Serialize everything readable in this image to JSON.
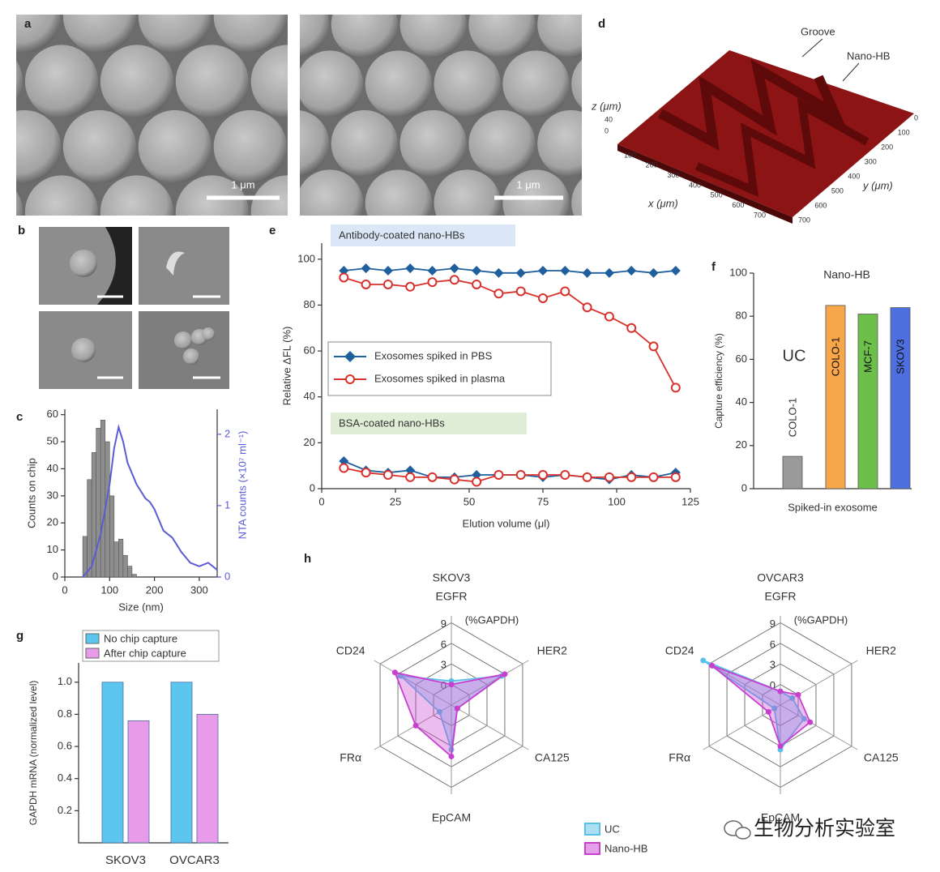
{
  "images": {
    "a": {
      "label": "a",
      "scale_bars": [
        "1 μm",
        "1 μm"
      ]
    },
    "b": {
      "label": "b"
    },
    "d": {
      "label": "d",
      "annotations": [
        "Groove",
        "Nano-HB"
      ],
      "x_label": "x (μm)",
      "y_label": "y (μm)",
      "z_label": "z (μm)",
      "x_ticks": [
        100,
        200,
        300,
        400,
        500,
        600,
        700
      ],
      "y_ticks": [
        0,
        100,
        200,
        300,
        400,
        500,
        600,
        700
      ],
      "z_ticks": [
        40,
        0
      ]
    }
  },
  "chart_data": [
    {
      "type": "histogram",
      "label": "c",
      "bins": [
        40,
        50,
        60,
        70,
        80,
        90,
        100,
        110,
        120,
        130,
        140,
        150,
        160
      ],
      "counts": [
        15,
        36,
        46,
        55,
        58,
        50,
        30,
        13,
        14,
        8,
        4,
        1
      ],
      "color": "#8e8e8e",
      "line": {
        "x": [
          40,
          60,
          80,
          100,
          110,
          120,
          130,
          140,
          150,
          160,
          170,
          180,
          190,
          200,
          210,
          220,
          240,
          260,
          280,
          300,
          320,
          340
        ],
        "values": [
          0,
          0.15,
          0.6,
          1.3,
          1.8,
          2.1,
          1.9,
          1.6,
          1.45,
          1.3,
          1.2,
          1.1,
          1.05,
          0.95,
          0.8,
          0.65,
          0.55,
          0.35,
          0.2,
          0.15,
          0.2,
          0.1
        ],
        "color": "#5b5bd6",
        "axis": "y2"
      },
      "xlim": [
        0,
        340
      ],
      "xticks": [
        0,
        100,
        200,
        300
      ],
      "ylim": [
        0,
        62
      ],
      "yticks": [
        0,
        10,
        20,
        30,
        40,
        50,
        60
      ],
      "y2lim": [
        0,
        2.35
      ],
      "y2ticks": [
        0,
        1,
        2
      ],
      "xlabel": "Size (nm)",
      "ylabel": "Counts on chip",
      "y2label": "NTA counts (×10⁷ ml⁻¹)"
    },
    {
      "type": "line",
      "label": "e",
      "groups": [
        {
          "label": "Antibody-coated nano-HBs",
          "box_color": "#dbe7f6",
          "x": [
            7.5,
            15,
            22.5,
            30,
            37.5,
            45,
            52.5,
            60,
            67.5,
            75,
            82.5,
            90,
            97.5,
            105,
            112.5,
            120
          ],
          "series": [
            {
              "name": "Exosomes spiked in PBS",
              "color": "#1f5f9e",
              "marker": "diamond",
              "values": [
                95,
                96,
                95,
                96,
                95,
                96,
                95,
                94,
                94,
                95,
                95,
                94,
                94,
                95,
                94,
                95
              ]
            },
            {
              "name": "Exosomes spiked in plasma",
              "color": "#d9312b",
              "marker": "circle",
              "values": [
                92,
                89,
                89,
                88,
                90,
                91,
                89,
                85,
                86,
                83,
                86,
                79,
                75,
                70,
                62,
                44
              ]
            }
          ]
        },
        {
          "label": "BSA-coated nano-HBs",
          "box_color": "#e0eed8",
          "x": [
            7.5,
            15,
            22.5,
            30,
            37.5,
            45,
            52.5,
            60,
            67.5,
            75,
            82.5,
            90,
            97.5,
            105,
            112.5,
            120
          ],
          "series": [
            {
              "color": "#1f5f9e",
              "marker": "diamond",
              "values": [
                12,
                8,
                7,
                8,
                5,
                5,
                6,
                6,
                6,
                5,
                6,
                5,
                4,
                6,
                5,
                7
              ]
            },
            {
              "color": "#d9312b",
              "marker": "circle",
              "values": [
                9,
                7,
                6,
                5,
                5,
                4,
                3,
                6,
                6,
                6,
                6,
                5,
                5,
                5,
                5,
                5
              ]
            }
          ]
        }
      ],
      "xlim": [
        0,
        125
      ],
      "xticks": [
        0,
        25,
        50,
        75,
        100,
        125
      ],
      "ylim": [
        0,
        107
      ],
      "yticks": [
        0,
        20,
        40,
        60,
        80,
        100
      ],
      "xlabel": "Elution volume (μl)",
      "ylabel": "Relative ΔFL (%)"
    },
    {
      "type": "bar",
      "label": "f",
      "title": "Nano-HB",
      "annotation": "UC",
      "categories": [
        "COLO-1",
        "COLO-1",
        "MCF-7",
        "SKOV3"
      ],
      "values": [
        15,
        85,
        81,
        84
      ],
      "colors": [
        "#9a9a9a",
        "#f7a64a",
        "#6cc04a",
        "#4d6fe0"
      ],
      "ylim": [
        0,
        100
      ],
      "yticks": [
        0,
        20,
        40,
        60,
        80,
        100
      ],
      "xlabel": "Spiked-in exosome",
      "ylabel": "Capture efficiency (%)"
    },
    {
      "type": "bar",
      "label": "g",
      "categories": [
        "SKOV3",
        "OVCAR3"
      ],
      "series": [
        {
          "name": "No chip capture",
          "color": "#5cc6ee",
          "values": [
            1.0,
            1.0
          ]
        },
        {
          "name": "After chip capture",
          "color": "#e79be9",
          "values": [
            0.76,
            0.8
          ]
        }
      ],
      "ylim": [
        0,
        1.12
      ],
      "yticks": [
        0.2,
        0.4,
        0.6,
        0.8,
        {
          "value": 1,
          "label": "1.0"
        }
      ],
      "ylabel": "GAPDH mRNA (normalized level)"
    },
    {
      "type": "radar",
      "label": "h",
      "title": "SKOV3",
      "unit": "(%GAPDH)",
      "axes": [
        "EGFR",
        "HER2",
        "CA125",
        "EpCAM",
        "FRα",
        "CD24"
      ],
      "rlim": [
        -3,
        10
      ],
      "rticks": [
        0,
        3,
        6,
        9
      ],
      "series": [
        {
          "name": "UC",
          "color": "#5bc0e8",
          "values": [
            0.5,
            5.5,
            -2,
            3.5,
            -1,
            5.5
          ]
        },
        {
          "name": "Nano-HB",
          "color": "#c83fd0",
          "values": [
            0,
            6,
            -2,
            4.5,
            3,
            6.5
          ]
        }
      ]
    },
    {
      "type": "radar",
      "title": "OVCAR3",
      "unit": "(%GAPDH)",
      "axes": [
        "EGFR",
        "HER2",
        "CA125",
        "EpCAM",
        "FRα",
        "CD24"
      ],
      "rlim": [
        -3,
        10
      ],
      "rticks": [
        0,
        3,
        6,
        9
      ],
      "series": [
        {
          "color": "#5bc0e8",
          "values": [
            -1,
            -1,
            1,
            3.5,
            -2,
            10
          ]
        },
        {
          "color": "#c83fd0",
          "values": [
            -1,
            0,
            2,
            3,
            -1,
            8.5
          ]
        }
      ]
    }
  ],
  "watermark": "生物分析实验室"
}
